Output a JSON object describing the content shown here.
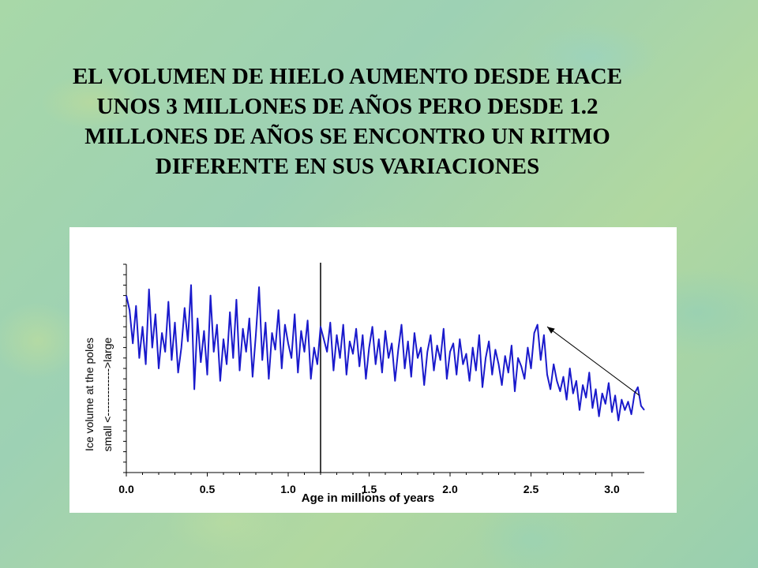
{
  "slide": {
    "title_lines": [
      "EL VOLUMEN DE HIELO AUMENTO DESDE HACE",
      "UNOS 3 MILLONES DE AÑOS PERO DESDE 1.2",
      "MILLONES DE AÑOS SE ENCONTRO UN RITMO",
      "DIFERENTE EN SUS VARIACIONES"
    ]
  },
  "chart_data": {
    "type": "line",
    "title": "",
    "xlabel": "Age in millions of years",
    "ylabel_line1": "Ice volume at the poles",
    "ylabel_line2": "small <------------->large",
    "xlim": [
      0.0,
      3.2
    ],
    "ylim": [
      0,
      100
    ],
    "x_ticks": [
      "0.0",
      "0.5",
      "1.0",
      "1.5",
      "2.0",
      "2.5",
      "3.0"
    ],
    "x_tick_values": [
      0.0,
      0.5,
      1.0,
      1.5,
      2.0,
      2.5,
      3.0
    ],
    "y_tick_labels_shown": false,
    "vertical_marker_x": 1.2,
    "annotation_arrow": {
      "from": [
        3.17,
        37
      ],
      "to": [
        2.6,
        70
      ]
    },
    "series": [
      {
        "color": "#1a1acc",
        "x": [
          0.0,
          0.02,
          0.04,
          0.06,
          0.08,
          0.1,
          0.12,
          0.14,
          0.16,
          0.18,
          0.2,
          0.22,
          0.24,
          0.26,
          0.28,
          0.3,
          0.32,
          0.34,
          0.36,
          0.38,
          0.4,
          0.42,
          0.44,
          0.46,
          0.48,
          0.5,
          0.52,
          0.54,
          0.56,
          0.58,
          0.6,
          0.62,
          0.64,
          0.66,
          0.68,
          0.7,
          0.72,
          0.74,
          0.76,
          0.78,
          0.8,
          0.82,
          0.84,
          0.86,
          0.88,
          0.9,
          0.92,
          0.94,
          0.96,
          0.98,
          1.0,
          1.02,
          1.04,
          1.06,
          1.08,
          1.1,
          1.12,
          1.14,
          1.16,
          1.18,
          1.2,
          1.22,
          1.24,
          1.26,
          1.28,
          1.3,
          1.32,
          1.34,
          1.36,
          1.38,
          1.4,
          1.42,
          1.44,
          1.46,
          1.48,
          1.5,
          1.52,
          1.54,
          1.56,
          1.58,
          1.6,
          1.62,
          1.64,
          1.66,
          1.68,
          1.7,
          1.72,
          1.74,
          1.76,
          1.78,
          1.8,
          1.82,
          1.84,
          1.86,
          1.88,
          1.9,
          1.92,
          1.94,
          1.96,
          1.98,
          2.0,
          2.02,
          2.04,
          2.06,
          2.08,
          2.1,
          2.12,
          2.14,
          2.16,
          2.18,
          2.2,
          2.22,
          2.24,
          2.26,
          2.28,
          2.3,
          2.32,
          2.34,
          2.36,
          2.38,
          2.4,
          2.42,
          2.44,
          2.46,
          2.48,
          2.5,
          2.52,
          2.54,
          2.56,
          2.58,
          2.6,
          2.62,
          2.64,
          2.66,
          2.68,
          2.7,
          2.72,
          2.74,
          2.76,
          2.78,
          2.8,
          2.82,
          2.84,
          2.86,
          2.88,
          2.9,
          2.92,
          2.94,
          2.96,
          2.98,
          3.0,
          3.02,
          3.04,
          3.06,
          3.08,
          3.1,
          3.12,
          3.14,
          3.16,
          3.18,
          3.2
        ],
        "values": [
          85,
          78,
          62,
          80,
          55,
          70,
          52,
          88,
          60,
          76,
          50,
          67,
          58,
          82,
          54,
          72,
          48,
          60,
          79,
          63,
          90,
          40,
          74,
          53,
          68,
          47,
          85,
          58,
          71,
          44,
          64,
          52,
          77,
          55,
          83,
          49,
          69,
          58,
          74,
          46,
          66,
          89,
          54,
          72,
          45,
          67,
          59,
          78,
          50,
          71,
          62,
          55,
          76,
          48,
          68,
          58,
          73,
          45,
          60,
          52,
          70,
          64,
          58,
          72,
          49,
          66,
          55,
          71,
          47,
          63,
          57,
          69,
          51,
          66,
          45,
          60,
          70,
          52,
          64,
          48,
          68,
          55,
          62,
          44,
          59,
          71,
          50,
          63,
          46,
          67,
          55,
          60,
          42,
          58,
          66,
          49,
          61,
          54,
          69,
          45,
          58,
          62,
          47,
          64,
          52,
          57,
          44,
          60,
          49,
          66,
          41,
          55,
          63,
          47,
          59,
          52,
          42,
          56,
          48,
          61,
          39,
          55,
          51,
          45,
          60,
          50,
          67,
          71,
          54,
          66,
          47,
          40,
          52,
          44,
          39,
          46,
          35,
          50,
          38,
          44,
          30,
          42,
          36,
          48,
          31,
          40,
          27,
          38,
          33,
          43,
          29,
          37,
          25,
          35,
          30,
          34,
          28,
          38,
          41,
          32,
          30
        ]
      }
    ]
  }
}
